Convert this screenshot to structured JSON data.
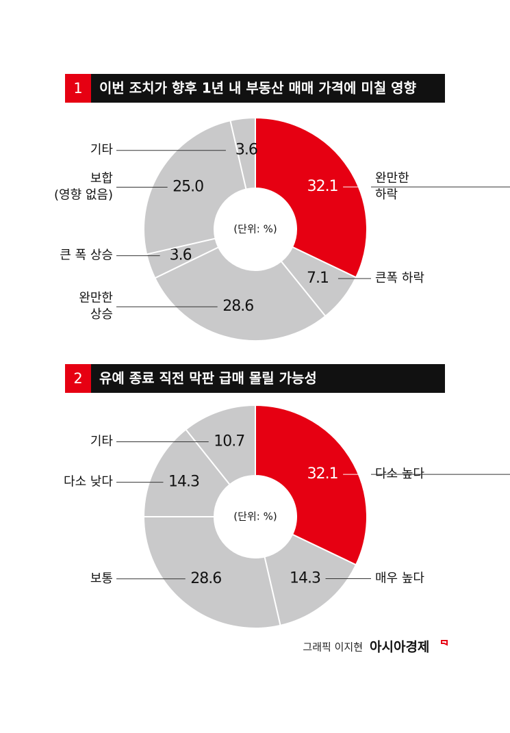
{
  "chart_data": [
    {
      "type": "pie",
      "number": "1",
      "title": "이번 조치가 향후 1년 내 부동산 매매 가격에 미칠 영향",
      "center_label": "(단위: %)",
      "categories": [
        [
          "완만한",
          "하락"
        ],
        [
          "큰폭 하락"
        ],
        [
          "완만한",
          "상승"
        ],
        [
          "큰 폭 상승"
        ],
        [
          "보합",
          "(영향 없음)"
        ],
        [
          "기타"
        ]
      ],
      "values": [
        32.1,
        7.1,
        28.6,
        3.6,
        25.0,
        3.6
      ],
      "value_labels": [
        "32.1",
        "7.1",
        "28.6",
        "3.6",
        "25.0",
        "3.6"
      ],
      "colors": [
        "#e60012",
        "#c9c9ca",
        "#c9c9ca",
        "#c9c9ca",
        "#c9c9ca",
        "#c9c9ca"
      ]
    },
    {
      "type": "pie",
      "number": "2",
      "title": "유예 종료 직전 막판 급매 몰릴 가능성",
      "center_label": "(단위: %)",
      "categories": [
        [
          "다소 높다"
        ],
        [
          "매우 높다"
        ],
        [
          "보통"
        ],
        [
          "다소 낮다"
        ],
        [
          "기타"
        ]
      ],
      "values": [
        32.1,
        14.3,
        28.6,
        14.3,
        10.7
      ],
      "value_labels": [
        "32.1",
        "14.3",
        "28.6",
        "14.3",
        "10.7"
      ],
      "colors": [
        "#e60012",
        "#c9c9ca",
        "#c9c9ca",
        "#c9c9ca",
        "#c9c9ca"
      ]
    }
  ],
  "footer": {
    "credit": "그래픽 이지현",
    "brand": "아시아경제"
  }
}
